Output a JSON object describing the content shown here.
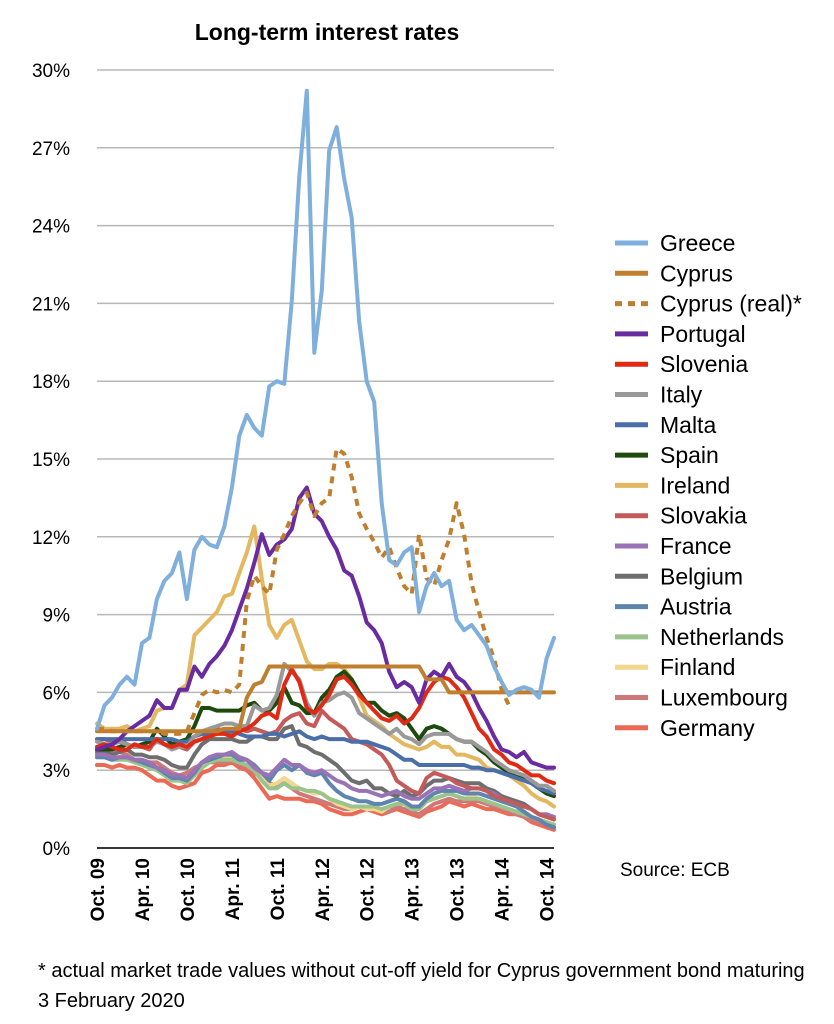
{
  "chart_data": {
    "type": "line",
    "title": "Long-term interest rates",
    "xlabel": "",
    "ylabel": "",
    "ylim": [
      0,
      30
    ],
    "y_ticks": [
      "0%",
      "3%",
      "6%",
      "9%",
      "12%",
      "15%",
      "18%",
      "21%",
      "24%",
      "27%",
      "30%"
    ],
    "x_ticks": [
      "Oct. 09",
      "Apr. 10",
      "Oct. 10",
      "Apr. 11",
      "Oct. 11",
      "Apr. 12",
      "Oct. 12",
      "Apr. 13",
      "Oct. 13",
      "Apr. 14",
      "Oct. 14"
    ],
    "x": [
      "Oct. 09",
      "Nov. 09",
      "Dec. 09",
      "Jan. 10",
      "Feb. 10",
      "Mar. 10",
      "Apr. 10",
      "May 10",
      "Jun. 10",
      "Jul. 10",
      "Aug. 10",
      "Sep. 10",
      "Oct. 10",
      "Nov. 10",
      "Dec. 10",
      "Jan. 11",
      "Feb. 11",
      "Mar. 11",
      "Apr. 11",
      "May 11",
      "Jun. 11",
      "Jul. 11",
      "Aug. 11",
      "Sep. 11",
      "Oct. 11",
      "Nov. 11",
      "Dec. 11",
      "Jan. 12",
      "Feb. 12",
      "Mar. 12",
      "Apr. 12",
      "May 12",
      "Jun. 12",
      "Jul. 12",
      "Aug. 12",
      "Sep. 12",
      "Oct. 12",
      "Nov. 12",
      "Dec. 12",
      "Jan. 13",
      "Feb. 13",
      "Mar. 13",
      "Apr. 13",
      "May 13",
      "Jun. 13",
      "Jul. 13",
      "Aug. 13",
      "Sep. 13",
      "Oct. 13",
      "Nov. 13",
      "Dec. 13",
      "Jan. 14",
      "Feb. 14",
      "Mar. 14",
      "Apr. 14",
      "May 14",
      "Jun. 14",
      "Jul. 14",
      "Aug. 14",
      "Sep. 14",
      "Oct. 14",
      "Nov. 14"
    ],
    "grid": true,
    "legend_position": "right",
    "series": [
      {
        "name": "Greece",
        "color": "#7fafdc",
        "dash": false,
        "values": [
          4.6,
          5.5,
          5.8,
          6.3,
          6.6,
          6.3,
          7.9,
          8.1,
          9.6,
          10.3,
          10.6,
          11.4,
          9.6,
          11.5,
          12.0,
          11.7,
          11.6,
          12.4,
          13.9,
          15.9,
          16.7,
          16.2,
          15.9,
          17.8,
          18.0,
          17.9,
          21.1,
          25.9,
          29.2,
          19.1,
          21.5,
          26.9,
          27.8,
          25.8,
          24.3,
          20.3,
          18.0,
          17.2,
          13.3,
          11.1,
          10.9,
          11.4,
          11.6,
          9.1,
          10.1,
          10.6,
          10.1,
          10.3,
          8.8,
          8.4,
          8.6,
          8.2,
          7.8,
          7.0,
          6.4,
          5.9,
          6.1,
          6.2,
          6.1,
          5.8,
          7.3,
          8.1
        ]
      },
      {
        "name": "Cyprus",
        "color": "#c07f2f",
        "dash": false,
        "values": [
          4.5,
          4.5,
          4.5,
          4.5,
          4.5,
          4.5,
          4.5,
          4.5,
          4.5,
          4.5,
          4.5,
          4.5,
          4.5,
          4.5,
          4.5,
          4.5,
          4.5,
          4.6,
          4.6,
          4.6,
          5.8,
          6.3,
          6.4,
          7.0,
          7.0,
          7.0,
          7.0,
          7.0,
          7.0,
          7.0,
          7.0,
          7.0,
          7.0,
          7.0,
          7.0,
          7.0,
          7.0,
          7.0,
          7.0,
          7.0,
          7.0,
          7.0,
          7.0,
          7.0,
          6.5,
          6.5,
          6.5,
          6.0,
          6.0,
          6.0,
          6.0,
          6.0,
          6.0,
          6.0,
          6.0,
          6.0,
          6.0,
          6.0,
          6.0,
          6.0,
          6.0,
          6.0
        ]
      },
      {
        "name": "Cyprus (real)*",
        "color": "#c07f2f",
        "dash": true,
        "values": [
          4.6,
          4.6,
          4.5,
          4.5,
          4.5,
          4.5,
          4.5,
          4.5,
          4.5,
          4.4,
          4.4,
          4.4,
          4.5,
          5.2,
          5.9,
          6.1,
          6.0,
          6.1,
          6.0,
          6.3,
          9.5,
          10.5,
          10.1,
          9.8,
          11.5,
          12.1,
          12.8,
          13.3,
          13.7,
          12.8,
          13.3,
          13.5,
          15.4,
          15.2,
          14.3,
          12.9,
          12.3,
          11.8,
          11.2,
          11.6,
          10.8,
          10.1,
          9.8,
          12.1,
          10.4,
          10.1,
          11.1,
          11.9,
          13.3,
          12.1,
          10.2,
          9.1,
          8.1,
          7.3,
          6.1,
          5.5,
          null,
          null,
          null,
          null,
          null,
          null
        ]
      },
      {
        "name": "Portugal",
        "color": "#6a2aa0",
        "dash": false,
        "values": [
          3.8,
          3.9,
          4.0,
          4.2,
          4.5,
          4.7,
          4.9,
          5.1,
          5.7,
          5.4,
          5.4,
          6.1,
          6.1,
          7.0,
          6.6,
          7.1,
          7.4,
          7.8,
          8.4,
          9.2,
          10.0,
          11.0,
          12.1,
          11.3,
          11.7,
          11.9,
          12.3,
          13.5,
          13.9,
          12.9,
          12.6,
          12.0,
          11.5,
          10.7,
          10.5,
          9.7,
          8.7,
          8.4,
          7.9,
          6.8,
          6.2,
          6.4,
          6.2,
          5.6,
          6.5,
          6.8,
          6.6,
          7.1,
          6.6,
          6.4,
          6.0,
          5.4,
          4.9,
          4.3,
          3.8,
          3.7,
          3.5,
          3.7,
          3.3,
          3.2,
          3.1,
          3.1
        ]
      },
      {
        "name": "Slovenia",
        "color": "#e02a16",
        "dash": false,
        "values": [
          3.9,
          4.0,
          3.9,
          3.8,
          3.8,
          4.0,
          3.9,
          3.9,
          4.2,
          4.0,
          3.9,
          4.0,
          3.9,
          4.1,
          4.2,
          4.3,
          4.4,
          4.4,
          4.3,
          4.5,
          4.6,
          4.8,
          5.1,
          5.2,
          5.0,
          6.3,
          6.9,
          6.4,
          5.4,
          5.2,
          5.5,
          5.9,
          6.5,
          6.6,
          6.3,
          5.9,
          5.6,
          5.3,
          5.0,
          4.9,
          5.1,
          4.8,
          5.0,
          5.4,
          6.0,
          6.4,
          6.6,
          6.5,
          6.2,
          5.8,
          5.2,
          4.6,
          4.3,
          3.8,
          3.6,
          3.3,
          3.2,
          3.0,
          2.8,
          2.8,
          2.6,
          2.5
        ]
      },
      {
        "name": "Italy",
        "color": "#999999",
        "dash": false,
        "values": [
          4.1,
          4.0,
          4.0,
          4.1,
          4.0,
          3.9,
          3.9,
          3.9,
          4.1,
          4.0,
          3.8,
          3.9,
          3.9,
          4.3,
          4.5,
          4.6,
          4.7,
          4.8,
          4.8,
          4.7,
          4.7,
          5.5,
          5.3,
          5.4,
          5.9,
          7.1,
          6.8,
          6.5,
          5.6,
          5.1,
          5.6,
          5.7,
          5.9,
          6.0,
          5.8,
          5.2,
          5.0,
          4.8,
          4.6,
          4.4,
          4.6,
          4.3,
          4.2,
          4.0,
          4.3,
          4.4,
          4.4,
          4.4,
          4.2,
          4.1,
          4.1,
          3.9,
          3.7,
          3.4,
          3.2,
          3.0,
          2.9,
          2.8,
          2.6,
          2.4,
          2.4,
          2.2
        ]
      },
      {
        "name": "Malta",
        "color": "#4a6fa8",
        "dash": false,
        "values": [
          4.2,
          4.2,
          4.2,
          4.2,
          4.2,
          4.2,
          4.2,
          4.2,
          4.2,
          4.2,
          4.2,
          4.1,
          4.1,
          4.3,
          4.4,
          4.4,
          4.5,
          4.5,
          4.5,
          4.4,
          4.3,
          4.3,
          4.3,
          4.4,
          4.4,
          4.3,
          4.4,
          4.5,
          4.3,
          4.2,
          4.3,
          4.2,
          4.2,
          4.2,
          4.1,
          4.1,
          4.1,
          4.0,
          3.9,
          3.8,
          3.6,
          3.4,
          3.4,
          3.2,
          3.2,
          3.2,
          3.2,
          3.2,
          3.2,
          3.2,
          3.1,
          3.1,
          3.0,
          3.0,
          2.9,
          2.8,
          2.7,
          2.6,
          2.5,
          2.3,
          2.2,
          2.1
        ]
      },
      {
        "name": "Spain",
        "color": "#1f4a0f",
        "dash": false,
        "values": [
          3.8,
          3.8,
          3.8,
          3.9,
          4.0,
          3.9,
          4.0,
          4.1,
          4.6,
          4.3,
          4.0,
          4.1,
          4.2,
          4.7,
          5.4,
          5.4,
          5.3,
          5.3,
          5.3,
          5.3,
          5.5,
          5.6,
          5.3,
          5.3,
          5.6,
          6.2,
          5.6,
          5.5,
          5.2,
          5.2,
          5.8,
          6.1,
          6.6,
          6.8,
          6.5,
          6.0,
          5.6,
          5.6,
          5.3,
          5.1,
          5.2,
          5.0,
          4.6,
          4.2,
          4.6,
          4.7,
          4.6,
          4.4,
          4.2,
          4.1,
          4.1,
          3.8,
          3.6,
          3.3,
          3.1,
          2.9,
          2.8,
          2.7,
          2.5,
          2.3,
          2.1,
          2.0
        ]
      },
      {
        "name": "Ireland",
        "color": "#e3b860",
        "dash": false,
        "values": [
          4.8,
          4.6,
          4.6,
          4.6,
          4.7,
          4.5,
          4.6,
          4.7,
          5.3,
          5.4,
          5.4,
          6.1,
          6.3,
          8.2,
          8.5,
          8.8,
          9.1,
          9.7,
          9.8,
          10.6,
          11.4,
          12.4,
          10.4,
          8.6,
          8.1,
          8.6,
          8.8,
          8.0,
          7.2,
          6.9,
          6.9,
          7.1,
          7.1,
          6.9,
          6.5,
          5.8,
          5.1,
          4.9,
          4.7,
          4.4,
          4.2,
          4.0,
          3.9,
          3.8,
          3.9,
          4.1,
          3.9,
          3.9,
          3.6,
          3.6,
          3.5,
          3.4,
          3.1,
          3.0,
          2.9,
          2.8,
          2.6,
          2.4,
          2.1,
          1.9,
          1.8,
          1.6
        ]
      },
      {
        "name": "Slovakia",
        "color": "#c45a5a",
        "dash": false,
        "values": [
          4.2,
          4.2,
          4.1,
          4.2,
          4.0,
          3.9,
          3.9,
          3.8,
          4.2,
          4.0,
          3.9,
          3.9,
          3.8,
          4.1,
          4.2,
          4.4,
          4.6,
          4.5,
          4.4,
          4.6,
          4.5,
          4.6,
          4.5,
          4.4,
          4.5,
          4.9,
          5.1,
          5.2,
          4.8,
          4.7,
          5.3,
          5.0,
          4.8,
          4.6,
          4.2,
          4.1,
          4.0,
          3.8,
          3.6,
          3.2,
          2.6,
          2.4,
          2.2,
          2.1,
          2.7,
          2.9,
          2.8,
          2.7,
          2.5,
          2.4,
          2.3,
          2.3,
          2.2,
          2.0,
          1.9,
          1.8,
          1.7,
          1.6,
          1.5,
          1.3,
          1.2,
          1.1
        ]
      },
      {
        "name": "France",
        "color": "#9a73b6",
        "dash": false,
        "values": [
          3.6,
          3.6,
          3.5,
          3.5,
          3.5,
          3.4,
          3.4,
          3.3,
          3.1,
          3.0,
          2.8,
          2.8,
          2.7,
          3.0,
          3.3,
          3.5,
          3.6,
          3.6,
          3.7,
          3.5,
          3.4,
          3.1,
          2.9,
          2.8,
          3.1,
          3.4,
          3.2,
          3.2,
          3.0,
          2.9,
          3.0,
          2.8,
          2.6,
          2.5,
          2.3,
          2.2,
          2.2,
          2.1,
          2.0,
          2.1,
          2.2,
          2.0,
          1.9,
          1.9,
          2.1,
          2.3,
          2.3,
          2.4,
          2.3,
          2.2,
          2.3,
          2.3,
          2.2,
          2.1,
          1.9,
          1.8,
          1.7,
          1.6,
          1.5,
          1.3,
          1.3,
          1.2
        ]
      },
      {
        "name": "Belgium",
        "color": "#6e6e6e",
        "dash": false,
        "values": [
          3.7,
          3.7,
          3.6,
          3.7,
          3.8,
          3.6,
          3.6,
          3.5,
          3.5,
          3.4,
          3.2,
          3.1,
          3.1,
          3.6,
          4.0,
          4.2,
          4.2,
          4.2,
          4.2,
          4.1,
          4.1,
          4.3,
          4.3,
          4.2,
          4.2,
          4.6,
          4.7,
          4.0,
          3.9,
          3.7,
          3.6,
          3.4,
          3.2,
          2.9,
          2.6,
          2.5,
          2.6,
          2.3,
          2.3,
          2.1,
          2.0,
          2.2,
          2.0,
          2.1,
          2.4,
          2.6,
          2.6,
          2.7,
          2.6,
          2.5,
          2.5,
          2.5,
          2.3,
          2.2,
          2.0,
          1.9,
          1.8,
          1.7,
          1.5,
          1.3,
          1.2,
          1.1
        ]
      },
      {
        "name": "Austria",
        "color": "#5f84ad",
        "dash": false,
        "values": [
          3.5,
          3.5,
          3.4,
          3.5,
          3.5,
          3.4,
          3.3,
          3.2,
          3.1,
          2.9,
          2.7,
          2.7,
          2.6,
          2.9,
          3.3,
          3.4,
          3.5,
          3.6,
          3.6,
          3.4,
          3.4,
          3.2,
          2.9,
          2.6,
          3.0,
          3.2,
          3.0,
          3.2,
          2.9,
          2.8,
          2.9,
          2.5,
          2.2,
          2.0,
          1.9,
          1.8,
          1.8,
          1.7,
          1.7,
          1.8,
          1.9,
          1.8,
          1.6,
          1.6,
          1.9,
          2.1,
          2.2,
          2.2,
          2.2,
          2.1,
          2.1,
          2.1,
          2.0,
          1.9,
          1.8,
          1.7,
          1.6,
          1.4,
          1.2,
          1.1,
          0.9,
          0.8
        ]
      },
      {
        "name": "Netherlands",
        "color": "#9ac48b",
        "dash": false,
        "values": [
          3.5,
          3.5,
          3.4,
          3.4,
          3.4,
          3.3,
          3.2,
          3.1,
          3.0,
          2.8,
          2.6,
          2.6,
          2.5,
          2.8,
          3.1,
          3.3,
          3.4,
          3.4,
          3.4,
          3.3,
          3.2,
          3.0,
          2.6,
          2.3,
          2.3,
          2.5,
          2.3,
          2.3,
          2.2,
          2.2,
          2.1,
          1.9,
          1.8,
          1.7,
          1.6,
          1.6,
          1.6,
          1.6,
          1.5,
          1.6,
          1.7,
          1.7,
          1.5,
          1.5,
          1.8,
          1.9,
          2.0,
          2.1,
          2.0,
          1.9,
          1.9,
          1.9,
          1.8,
          1.7,
          1.6,
          1.5,
          1.4,
          1.3,
          1.2,
          1.1,
          1.0,
          0.9
        ]
      },
      {
        "name": "Finland",
        "color": "#f2d78e",
        "dash": false,
        "values": [
          3.6,
          3.6,
          3.5,
          3.5,
          3.5,
          3.4,
          3.3,
          3.2,
          3.0,
          2.9,
          2.7,
          2.7,
          2.6,
          2.9,
          3.1,
          3.3,
          3.5,
          3.5,
          3.5,
          3.3,
          3.2,
          3.0,
          2.7,
          2.4,
          2.5,
          2.7,
          2.5,
          2.3,
          2.2,
          2.1,
          2.1,
          1.9,
          1.7,
          1.6,
          1.5,
          1.6,
          1.5,
          1.5,
          1.4,
          1.6,
          1.7,
          1.7,
          1.5,
          1.5,
          1.8,
          1.9,
          2.0,
          2.1,
          2.0,
          1.9,
          2.0,
          1.9,
          1.8,
          1.7,
          1.6,
          1.5,
          1.4,
          1.3,
          1.2,
          1.1,
          1.0,
          0.9
        ]
      },
      {
        "name": "Luxembourg",
        "color": "#d07878",
        "dash": false,
        "values": [
          3.9,
          3.8,
          3.7,
          3.7,
          3.6,
          3.4,
          3.4,
          3.3,
          3.3,
          3.1,
          2.9,
          2.8,
          2.9,
          3.1,
          3.2,
          3.3,
          3.3,
          3.3,
          3.4,
          3.2,
          3.1,
          2.9,
          2.7,
          2.5,
          2.4,
          2.5,
          2.3,
          2.1,
          2.0,
          1.9,
          1.8,
          1.7,
          1.6,
          1.5,
          1.5,
          1.6,
          1.5,
          1.5,
          1.4,
          1.4,
          1.6,
          1.5,
          1.4,
          1.3,
          1.5,
          1.7,
          1.8,
          1.9,
          1.8,
          1.8,
          1.8,
          1.8,
          1.7,
          1.6,
          1.5,
          1.4,
          1.3,
          1.2,
          1.1,
          1.0,
          0.9,
          0.8
        ]
      },
      {
        "name": "Germany",
        "color": "#ec6a55",
        "dash": false,
        "values": [
          3.2,
          3.2,
          3.1,
          3.2,
          3.1,
          3.1,
          3.0,
          2.8,
          2.6,
          2.6,
          2.4,
          2.3,
          2.4,
          2.5,
          2.9,
          3.0,
          3.2,
          3.2,
          3.3,
          3.1,
          3.0,
          2.7,
          2.3,
          1.9,
          2.0,
          1.9,
          1.9,
          1.9,
          1.8,
          1.8,
          1.7,
          1.5,
          1.4,
          1.3,
          1.3,
          1.4,
          1.5,
          1.4,
          1.3,
          1.4,
          1.5,
          1.4,
          1.3,
          1.2,
          1.4,
          1.5,
          1.6,
          1.8,
          1.7,
          1.6,
          1.7,
          1.6,
          1.5,
          1.5,
          1.4,
          1.3,
          1.3,
          1.2,
          1.0,
          0.9,
          0.8,
          0.7
        ]
      }
    ],
    "source": "Source: ECB",
    "footnote": "* actual market trade values without cut-off yield for Cyprus government bond maturing 3 February 2020"
  }
}
